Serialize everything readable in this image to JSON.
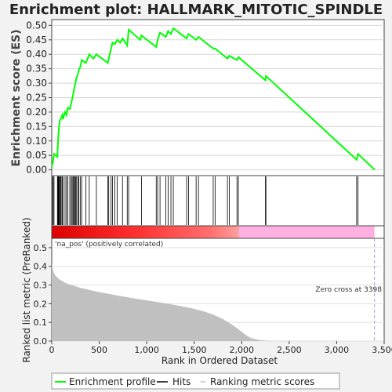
{
  "title": "Enrichment plot: HALLMARK_MITOTIC_SPINDLE",
  "colors": {
    "es_line": "#00ff00",
    "hits": "#000000",
    "metric_fill": "#c0c0c0",
    "pos_color": "#ff0000",
    "neg_color": "#ffb0e0",
    "zero_line": "#a0a0d0"
  },
  "chart_data": [
    {
      "id": "enrichment",
      "type": "line",
      "ylabel": "Enrichment score (ES)",
      "xlim": [
        0,
        3500
      ],
      "ylim": [
        -0.02,
        0.52
      ],
      "yticks": [
        0.0,
        0.05,
        0.1,
        0.15,
        0.2,
        0.25,
        0.3,
        0.35,
        0.4,
        0.45,
        0.5
      ],
      "ytick_labels": [
        "0.00",
        "0.05",
        "0.10",
        "0.15",
        "0.20",
        "0.25",
        "0.30",
        "0.35",
        "0.40",
        "0.45",
        "0.50"
      ],
      "grid": true,
      "points": [
        [
          0,
          0.01
        ],
        [
          14,
          0.03
        ],
        [
          24,
          0.055
        ],
        [
          60,
          0.045
        ],
        [
          62,
          0.07
        ],
        [
          67,
          0.1
        ],
        [
          72,
          0.13
        ],
        [
          78,
          0.15
        ],
        [
          85,
          0.17
        ],
        [
          92,
          0.175
        ],
        [
          100,
          0.18
        ],
        [
          112,
          0.19
        ],
        [
          118,
          0.175
        ],
        [
          140,
          0.2
        ],
        [
          155,
          0.19
        ],
        [
          170,
          0.215
        ],
        [
          190,
          0.21
        ],
        [
          205,
          0.23
        ],
        [
          215,
          0.245
        ],
        [
          225,
          0.26
        ],
        [
          233,
          0.275
        ],
        [
          242,
          0.29
        ],
        [
          252,
          0.305
        ],
        [
          262,
          0.32
        ],
        [
          275,
          0.33
        ],
        [
          285,
          0.345
        ],
        [
          300,
          0.355
        ],
        [
          315,
          0.38
        ],
        [
          360,
          0.37
        ],
        [
          395,
          0.4
        ],
        [
          440,
          0.385
        ],
        [
          470,
          0.4
        ],
        [
          590,
          0.37
        ],
        [
          600,
          0.385
        ],
        [
          625,
          0.42
        ],
        [
          640,
          0.44
        ],
        [
          665,
          0.435
        ],
        [
          690,
          0.45
        ],
        [
          720,
          0.44
        ],
        [
          745,
          0.455
        ],
        [
          795,
          0.43
        ],
        [
          810,
          0.485
        ],
        [
          930,
          0.45
        ],
        [
          945,
          0.465
        ],
        [
          1100,
          0.425
        ],
        [
          1115,
          0.45
        ],
        [
          1140,
          0.475
        ],
        [
          1200,
          0.46
        ],
        [
          1225,
          0.48
        ],
        [
          1255,
          0.47
        ],
        [
          1280,
          0.49
        ],
        [
          1420,
          0.455
        ],
        [
          1440,
          0.47
        ],
        [
          1520,
          0.45
        ],
        [
          1545,
          0.46
        ],
        [
          1700,
          0.42
        ],
        [
          1720,
          0.42
        ],
        [
          1850,
          0.385
        ],
        [
          1870,
          0.395
        ],
        [
          1950,
          0.38
        ],
        [
          1965,
          0.39
        ],
        [
          2250,
          0.31
        ],
        [
          2255,
          0.325
        ],
        [
          3210,
          0.035
        ],
        [
          3225,
          0.055
        ],
        [
          3400,
          0.0
        ]
      ],
      "hits": [
        10,
        14,
        24,
        60,
        62,
        67,
        72,
        78,
        85,
        92,
        100,
        112,
        118,
        140,
        155,
        170,
        190,
        205,
        215,
        225,
        233,
        242,
        252,
        262,
        275,
        285,
        300,
        315,
        360,
        395,
        470,
        590,
        600,
        625,
        640,
        665,
        690,
        745,
        795,
        810,
        945,
        1100,
        1115,
        1140,
        1200,
        1225,
        1255,
        1280,
        1420,
        1440,
        1520,
        1545,
        1700,
        1720,
        1850,
        1870,
        1950,
        1965,
        2250,
        2255,
        3210,
        3225
      ]
    },
    {
      "id": "ranked_metric",
      "type": "area",
      "xlabel": "Rank in Ordered Dataset",
      "ylabel": "Ranked list metric (PreRanked)",
      "xlim": [
        0,
        3500
      ],
      "ylim": [
        0,
        0.55
      ],
      "xticks": [
        0,
        500,
        1000,
        1500,
        2000,
        2500,
        3000,
        3500
      ],
      "xtick_labels": [
        "0",
        "500",
        "1,000",
        "1,500",
        "2,000",
        "2,500",
        "3,000",
        "3,500"
      ],
      "yticks": [
        0.0,
        0.1,
        0.2,
        0.3,
        0.4,
        0.5
      ],
      "ytick_labels": [
        "0.0",
        "0.1",
        "0.2",
        "0.3",
        "0.4",
        "0.5"
      ],
      "points": [
        [
          0,
          0.41
        ],
        [
          10,
          0.39
        ],
        [
          20,
          0.37
        ],
        [
          40,
          0.35
        ],
        [
          80,
          0.33
        ],
        [
          150,
          0.31
        ],
        [
          300,
          0.285
        ],
        [
          500,
          0.262
        ],
        [
          700,
          0.243
        ],
        [
          900,
          0.226
        ],
        [
          1100,
          0.21
        ],
        [
          1300,
          0.193
        ],
        [
          1500,
          0.172
        ],
        [
          1600,
          0.159
        ],
        [
          1700,
          0.142
        ],
        [
          1800,
          0.118
        ],
        [
          1900,
          0.087
        ],
        [
          1960,
          0.065
        ],
        [
          2000,
          0.05
        ],
        [
          2050,
          0.03
        ],
        [
          2100,
          0.015
        ],
        [
          2200,
          0.004
        ],
        [
          2300,
          0.001
        ],
        [
          3400,
          0.0
        ]
      ],
      "zero_cross": 3398,
      "pos_label": "'na_pos' (positively correlated)",
      "zero_label": "Zero cross at 3398"
    }
  ],
  "legend": {
    "items": [
      {
        "label": "Enrichment profile"
      },
      {
        "label": "Hits"
      },
      {
        "label": "Ranking metric scores"
      }
    ]
  }
}
